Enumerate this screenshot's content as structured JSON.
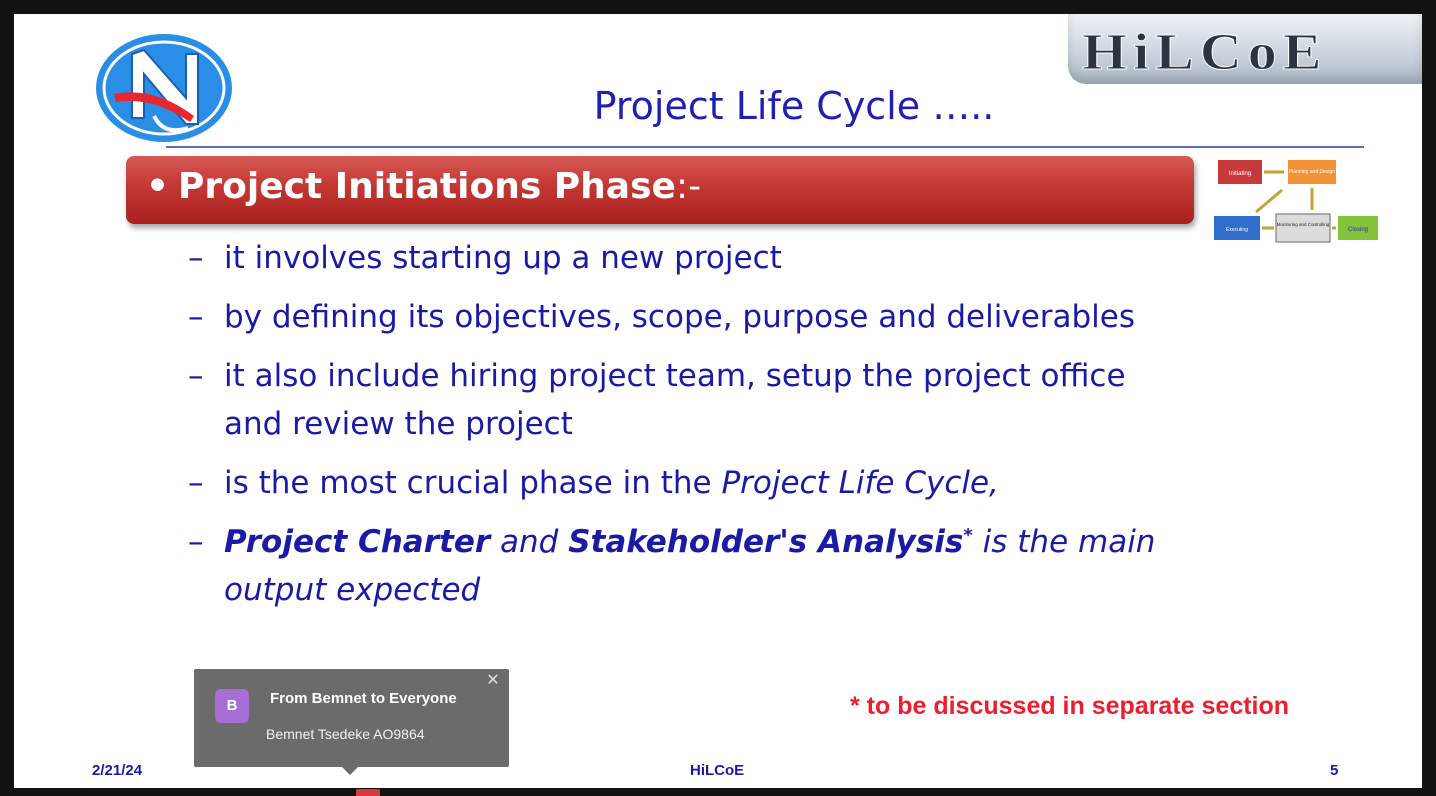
{
  "slide": {
    "title": "Project Life Cycle …..",
    "logo_right_text": "HiLCoE",
    "banner": {
      "bullet": "•",
      "heading": "Project Initiations Phase",
      "suffix": ":-"
    },
    "bullets": [
      {
        "dash": "–",
        "text": "it involves starting up a new project"
      },
      {
        "dash": "–",
        "text": "by defining its objectives, scope, purpose and deliverables"
      },
      {
        "dash": "–",
        "text": "it also include hiring project team, setup the project office and review the project"
      },
      {
        "dash": "–",
        "prefix": "is the most crucial phase in the ",
        "italic": "Project Life Cycle,"
      },
      {
        "dash": "–",
        "b1": "Project Charter",
        "mid": " and ",
        "b2": "Stakeholder's Analysis",
        "sup": "*",
        "tail": " is the main output expected"
      }
    ],
    "diagram": {
      "initiating": "Initiating",
      "planning": "Planning and Design",
      "executing": "Executing",
      "monitoring": "Monitoring and Controlling",
      "closing": "Closing"
    },
    "note": "* to be discussed in separate section",
    "footer": {
      "date": "2/21/24",
      "center": "HiLCoE",
      "page": "5"
    }
  },
  "chat_toast": {
    "avatar_letter": "B",
    "title": "From Bemnet to Everyone",
    "message": "Bemnet Tsedeke AO9864",
    "close_icon": "close-icon"
  },
  "colors": {
    "title": "#1f1fb4",
    "banner": "#c63a36",
    "body_text": "#1a1aa6",
    "note": "#ee1d2e",
    "toast_bg": "#6b6b6b",
    "avatar": "#a66ed6"
  }
}
